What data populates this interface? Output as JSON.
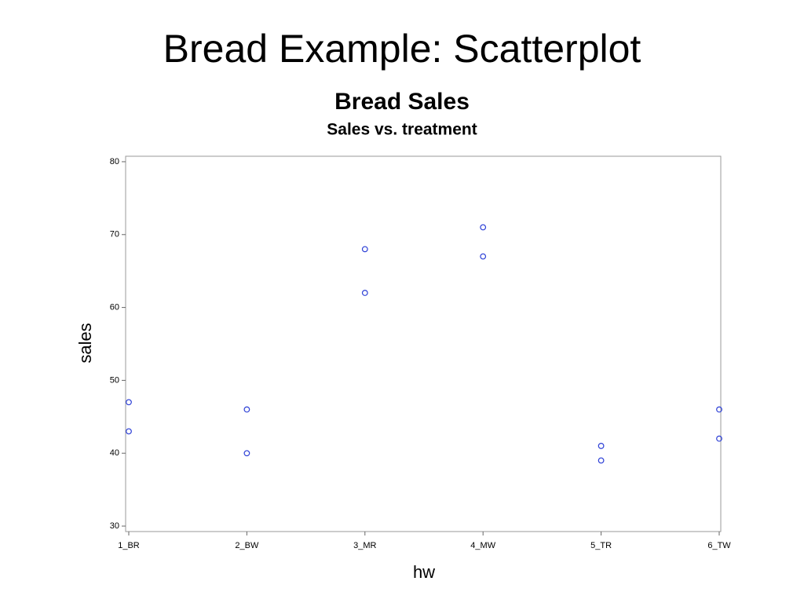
{
  "slide_title": "Bread Example: Scatterplot",
  "chart_data": {
    "type": "scatter",
    "title": "Bread Sales",
    "subtitle": "Sales vs. treatment",
    "xlabel": "hw",
    "ylabel": "sales",
    "categories": [
      "1_BR",
      "2_BW",
      "3_MR",
      "4_MW",
      "5_TR",
      "6_TW"
    ],
    "series": [
      {
        "color": "#2c3fd6",
        "values": [
          47,
          46,
          68,
          71,
          41,
          46
        ]
      },
      {
        "color": "#2c3fd6",
        "values": [
          43,
          40,
          62,
          67,
          39,
          42
        ]
      }
    ],
    "ylim": [
      29.25,
      80.75
    ],
    "yticks": [
      30,
      40,
      50,
      60,
      70,
      80
    ],
    "grid": false
  }
}
